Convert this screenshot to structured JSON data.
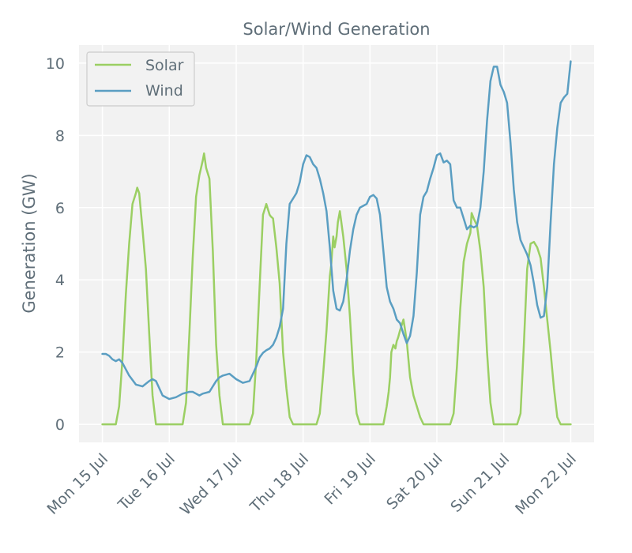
{
  "chart_data": {
    "type": "line",
    "title": "Solar/Wind Generation",
    "xlabel": "",
    "ylabel": "Generation (GW)",
    "ylim": [
      -0.5,
      10.5
    ],
    "xlim": [
      -0.35,
      7.35
    ],
    "yticks": [
      0,
      2,
      4,
      6,
      8,
      10
    ],
    "xticks": [
      {
        "value": 0,
        "label": "Mon 15 Jul"
      },
      {
        "value": 1,
        "label": "Tue 16 Jul"
      },
      {
        "value": 2,
        "label": "Wed 17 Jul"
      },
      {
        "value": 3,
        "label": "Thu 18 Jul"
      },
      {
        "value": 4,
        "label": "Fri 19 Jul"
      },
      {
        "value": 5,
        "label": "Sat 20 Jul"
      },
      {
        "value": 6,
        "label": "Sun 21 Jul"
      },
      {
        "value": 7,
        "label": "Mon 22 Jul"
      }
    ],
    "grid": true,
    "legend_position": "top-left",
    "series": [
      {
        "name": "Solar",
        "color": "#9bcf63",
        "x": [
          0,
          0.1,
          0.2,
          0.25,
          0.3,
          0.35,
          0.4,
          0.45,
          0.5,
          0.52,
          0.55,
          0.58,
          0.6,
          0.65,
          0.7,
          0.75,
          0.8,
          0.85,
          1.0,
          1.2,
          1.25,
          1.3,
          1.35,
          1.4,
          1.45,
          1.5,
          1.52,
          1.55,
          1.6,
          1.65,
          1.7,
          1.75,
          1.8,
          1.85,
          2.0,
          2.2,
          2.25,
          2.3,
          2.35,
          2.4,
          2.45,
          2.5,
          2.52,
          2.55,
          2.6,
          2.65,
          2.7,
          2.75,
          2.8,
          2.85,
          3.0,
          3.2,
          3.25,
          3.3,
          3.35,
          3.4,
          3.42,
          3.45,
          3.47,
          3.5,
          3.52,
          3.55,
          3.6,
          3.65,
          3.7,
          3.75,
          3.8,
          3.85,
          4.0,
          4.2,
          4.25,
          4.28,
          4.3,
          4.32,
          4.35,
          4.38,
          4.4,
          4.42,
          4.45,
          4.5,
          4.55,
          4.6,
          4.65,
          4.7,
          4.75,
          4.8,
          4.85,
          5.0,
          5.2,
          5.25,
          5.3,
          5.35,
          5.4,
          5.45,
          5.5,
          5.52,
          5.55,
          5.6,
          5.65,
          5.7,
          5.75,
          5.8,
          5.85,
          6.0,
          6.2,
          6.25,
          6.3,
          6.35,
          6.4,
          6.45,
          6.5,
          6.55,
          6.6,
          6.65,
          6.7,
          6.75,
          6.8,
          6.85,
          7.0
        ],
        "y": [
          0,
          0,
          0,
          0.5,
          1.8,
          3.6,
          5.0,
          6.1,
          6.4,
          6.55,
          6.4,
          5.8,
          5.4,
          4.3,
          2.5,
          0.8,
          0,
          0,
          0,
          0,
          0.6,
          2.5,
          4.6,
          6.3,
          6.9,
          7.3,
          7.5,
          7.1,
          6.8,
          4.8,
          2.2,
          0.8,
          0,
          0,
          0,
          0,
          0.3,
          1.8,
          3.8,
          5.8,
          6.1,
          5.8,
          5.75,
          5.7,
          4.9,
          3.9,
          2.0,
          1.0,
          0.2,
          0,
          0,
          0,
          0.3,
          1.4,
          2.6,
          4.1,
          4.4,
          5.2,
          4.9,
          5.2,
          5.6,
          5.9,
          5.2,
          4.3,
          3.0,
          1.4,
          0.3,
          0,
          0,
          0,
          0.5,
          0.9,
          1.3,
          2.0,
          2.2,
          2.1,
          2.3,
          2.4,
          2.6,
          2.9,
          2.3,
          1.3,
          0.8,
          0.5,
          0.2,
          0,
          0,
          0,
          0,
          0.3,
          1.6,
          3.2,
          4.5,
          5.0,
          5.3,
          5.85,
          5.7,
          5.5,
          4.8,
          3.8,
          2.0,
          0.6,
          0,
          0,
          0,
          0.3,
          2.2,
          4.3,
          5.0,
          5.05,
          4.9,
          4.6,
          3.8,
          2.9,
          2.0,
          1.0,
          0.2,
          0,
          0
        ],
        "stroke_width": 2.5
      },
      {
        "name": "Wind",
        "color": "#5a9ec2",
        "x": [
          0,
          0.05,
          0.1,
          0.15,
          0.2,
          0.25,
          0.3,
          0.4,
          0.5,
          0.6,
          0.7,
          0.75,
          0.8,
          0.85,
          0.9,
          1.0,
          1.1,
          1.2,
          1.3,
          1.35,
          1.4,
          1.45,
          1.5,
          1.6,
          1.7,
          1.75,
          1.8,
          1.9,
          2.0,
          2.1,
          2.2,
          2.25,
          2.3,
          2.35,
          2.4,
          2.45,
          2.5,
          2.55,
          2.6,
          2.65,
          2.7,
          2.75,
          2.8,
          2.9,
          2.95,
          3.0,
          3.05,
          3.1,
          3.15,
          3.2,
          3.25,
          3.3,
          3.35,
          3.4,
          3.45,
          3.5,
          3.55,
          3.6,
          3.65,
          3.7,
          3.75,
          3.8,
          3.85,
          3.9,
          3.95,
          4.0,
          4.05,
          4.1,
          4.15,
          4.2,
          4.25,
          4.3,
          4.35,
          4.4,
          4.45,
          4.5,
          4.55,
          4.6,
          4.65,
          4.7,
          4.75,
          4.8,
          4.85,
          4.9,
          4.95,
          5.0,
          5.05,
          5.1,
          5.15,
          5.2,
          5.25,
          5.3,
          5.35,
          5.4,
          5.45,
          5.5,
          5.55,
          5.6,
          5.65,
          5.7,
          5.75,
          5.8,
          5.85,
          5.9,
          5.95,
          6.0,
          6.05,
          6.1,
          6.15,
          6.2,
          6.25,
          6.3,
          6.35,
          6.4,
          6.45,
          6.5,
          6.55,
          6.6,
          6.65,
          6.7,
          6.75,
          6.8,
          6.85,
          6.9,
          6.95,
          7.0
        ],
        "y": [
          1.95,
          1.95,
          1.9,
          1.8,
          1.75,
          1.8,
          1.7,
          1.35,
          1.1,
          1.05,
          1.2,
          1.25,
          1.2,
          1.0,
          0.8,
          0.7,
          0.75,
          0.85,
          0.9,
          0.9,
          0.85,
          0.8,
          0.85,
          0.9,
          1.2,
          1.3,
          1.35,
          1.4,
          1.25,
          1.15,
          1.2,
          1.4,
          1.6,
          1.85,
          1.98,
          2.05,
          2.1,
          2.2,
          2.4,
          2.7,
          3.2,
          5.0,
          6.1,
          6.4,
          6.7,
          7.2,
          7.45,
          7.4,
          7.2,
          7.1,
          6.8,
          6.4,
          5.9,
          4.9,
          3.7,
          3.2,
          3.15,
          3.4,
          4.0,
          4.8,
          5.4,
          5.8,
          6.0,
          6.05,
          6.1,
          6.3,
          6.35,
          6.25,
          5.8,
          4.8,
          3.8,
          3.4,
          3.2,
          2.9,
          2.8,
          2.5,
          2.25,
          2.45,
          3.0,
          4.2,
          5.8,
          6.3,
          6.45,
          6.8,
          7.1,
          7.45,
          7.5,
          7.25,
          7.3,
          7.2,
          6.2,
          6.0,
          6.0,
          5.7,
          5.4,
          5.5,
          5.45,
          5.5,
          6.0,
          7.0,
          8.4,
          9.5,
          9.9,
          9.9,
          9.4,
          9.2,
          8.9,
          7.8,
          6.5,
          5.6,
          5.1,
          4.9,
          4.7,
          4.4,
          3.9,
          3.3,
          2.95,
          3.0,
          3.8,
          5.6,
          7.2,
          8.2,
          8.9,
          9.05,
          9.15,
          10.05
        ],
        "stroke_width": 2.5
      }
    ]
  }
}
